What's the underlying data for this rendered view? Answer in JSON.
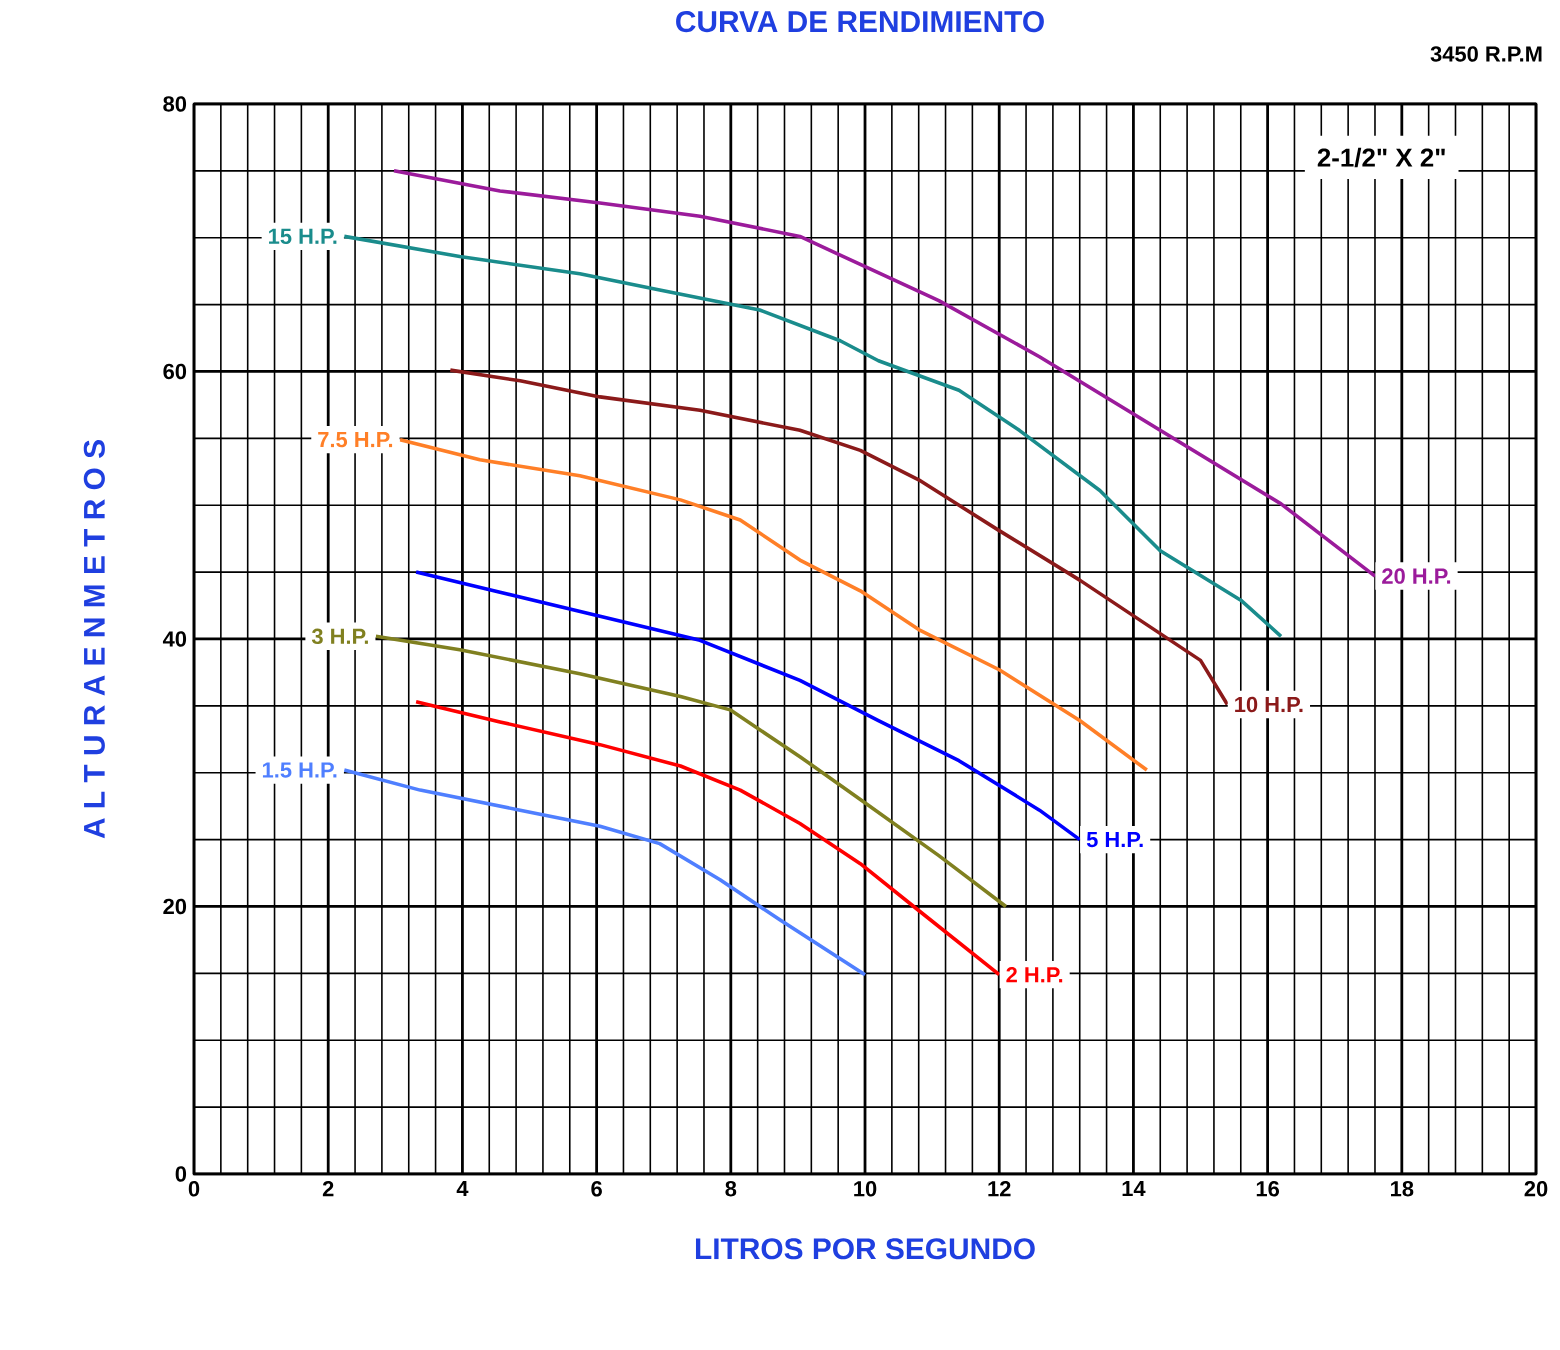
{
  "chart_data": {
    "type": "line",
    "title": "CURVA DE RENDIMIENTO",
    "xlabel": "LITROS POR SEGUNDO",
    "ylabel": "A L T U R A   E N   M E T R O S",
    "annotations": [
      "2-1/2\" X 2\"",
      "3450 R.P.M"
    ],
    "xlim": [
      0,
      20
    ],
    "ylim": [
      0,
      80
    ],
    "xticks": [
      0,
      2,
      4,
      6,
      8,
      10,
      12,
      14,
      16,
      18,
      20
    ],
    "yticks": [
      0,
      20,
      40,
      60,
      80
    ],
    "grid": true,
    "marker": "none",
    "line_style": "solid",
    "series": [
      {
        "name": "1.5 H.P.",
        "color": "#4f7fff",
        "x": [
          2.24,
          3.37,
          4.86,
          6.05,
          6.94,
          7.84,
          8.73,
          10.0
        ],
        "values": [
          30.2,
          28.7,
          27.2,
          26.0,
          24.7,
          22.0,
          19.0,
          14.9
        ]
      },
      {
        "name": "2 H.P.",
        "color": "#ff0000",
        "x": [
          3.31,
          4.56,
          6.05,
          7.25,
          8.14,
          9.03,
          9.93,
          10.8,
          12.0
        ],
        "values": [
          35.3,
          33.8,
          32.1,
          30.5,
          28.7,
          26.2,
          23.2,
          19.7,
          14.9
        ]
      },
      {
        "name": "3 H.P.",
        "color": "#808020",
        "x": [
          2.71,
          3.96,
          5.75,
          7.25,
          7.99,
          9.03,
          9.93,
          11.1,
          12.1
        ],
        "values": [
          40.2,
          39.2,
          37.4,
          35.7,
          34.7,
          31.2,
          28.0,
          23.8,
          20.0
        ]
      },
      {
        "name": "5 H.P.",
        "color": "#0000ff",
        "x": [
          3.31,
          4.56,
          6.05,
          7.54,
          9.03,
          10.2,
          11.4,
          12.6,
          13.2
        ],
        "values": [
          45.0,
          43.5,
          41.7,
          39.9,
          36.9,
          33.9,
          30.9,
          27.2,
          25.0
        ]
      },
      {
        "name": "7.5 H.P.",
        "color": "#ff7f27",
        "x": [
          3.07,
          4.26,
          5.75,
          7.25,
          8.14,
          9.03,
          9.93,
          10.8,
          12.0,
          13.2,
          14.2
        ],
        "values": [
          54.9,
          53.4,
          52.2,
          50.4,
          48.9,
          45.9,
          43.6,
          40.7,
          37.7,
          33.9,
          30.2
        ]
      },
      {
        "name": "10 H.P.",
        "color": "#8b1a1a",
        "x": [
          3.82,
          4.86,
          6.05,
          7.54,
          9.03,
          9.93,
          10.8,
          12.0,
          13.2,
          14.1,
          15.0,
          15.4
        ],
        "values": [
          60.1,
          59.3,
          58.1,
          57.1,
          55.6,
          54.1,
          51.9,
          48.1,
          44.4,
          41.4,
          38.4,
          35.1
        ]
      },
      {
        "name": "15 H.P.",
        "color": "#1a8c8c",
        "x": [
          2.24,
          3.96,
          5.75,
          6.94,
          8.43,
          9.63,
          10.2,
          11.4,
          12.3,
          13.5,
          14.4,
          15.6,
          16.2
        ],
        "values": [
          70.1,
          68.6,
          67.3,
          66.1,
          64.6,
          62.3,
          60.8,
          58.6,
          55.6,
          51.1,
          46.6,
          42.9,
          40.2
        ]
      },
      {
        "name": "20 H.P.",
        "color": "#9b1b9b",
        "x": [
          2.98,
          4.56,
          6.05,
          7.54,
          9.03,
          9.93,
          11.1,
          12.6,
          14.4,
          16.2,
          17.6
        ],
        "values": [
          75.0,
          73.5,
          72.6,
          71.6,
          70.1,
          68.0,
          65.3,
          61.1,
          55.6,
          50.1,
          44.7
        ]
      }
    ]
  }
}
